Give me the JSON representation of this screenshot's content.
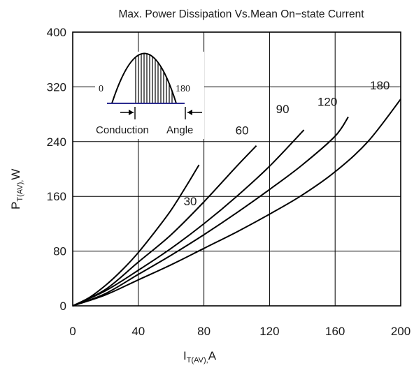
{
  "chart_data": {
    "type": "line",
    "title": "Max. Power  Dissipation Vs.Mean  On−state Current",
    "xlabel": {
      "main": "I",
      "sub": "T(AV),",
      "unit": "A"
    },
    "ylabel": {
      "main": "P",
      "sub": "T(AV),",
      "unit": "W"
    },
    "xlim": [
      0,
      200
    ],
    "ylim": [
      0,
      400
    ],
    "x_ticks": [
      "0",
      "40",
      "80",
      "120",
      "160",
      "200"
    ],
    "y_ticks": [
      "0",
      "80",
      "160",
      "240",
      "320",
      "400"
    ],
    "grid": true,
    "series": [
      {
        "name": "30",
        "x": [
          0,
          10,
          20,
          30,
          40,
          50,
          60,
          70,
          77
        ],
        "y": [
          0,
          12,
          30,
          52,
          78,
          108,
          140,
          178,
          206
        ]
      },
      {
        "name": "60",
        "x": [
          0,
          20,
          40,
          60,
          80,
          100,
          112
        ],
        "y": [
          0,
          24,
          64,
          104,
          152,
          204,
          234
        ]
      },
      {
        "name": "90",
        "x": [
          0,
          20,
          40,
          60,
          80,
          100,
          120,
          141
        ],
        "y": [
          0,
          22,
          52,
          84,
          120,
          160,
          204,
          257
        ]
      },
      {
        "name": "120",
        "x": [
          0,
          20,
          40,
          60,
          80,
          100,
          120,
          140,
          160,
          168
        ],
        "y": [
          0,
          18,
          46,
          74,
          104,
          136,
          170,
          206,
          248,
          276
        ]
      },
      {
        "name": "180",
        "x": [
          0,
          20,
          40,
          60,
          80,
          100,
          120,
          140,
          160,
          180,
          200
        ],
        "y": [
          0,
          16,
          38,
          60,
          84,
          108,
          134,
          162,
          196,
          240,
          302
        ]
      }
    ],
    "inset": {
      "label_start": "0",
      "label_end": "180",
      "caption_left": "Conduction",
      "caption_right": "Angle"
    }
  }
}
